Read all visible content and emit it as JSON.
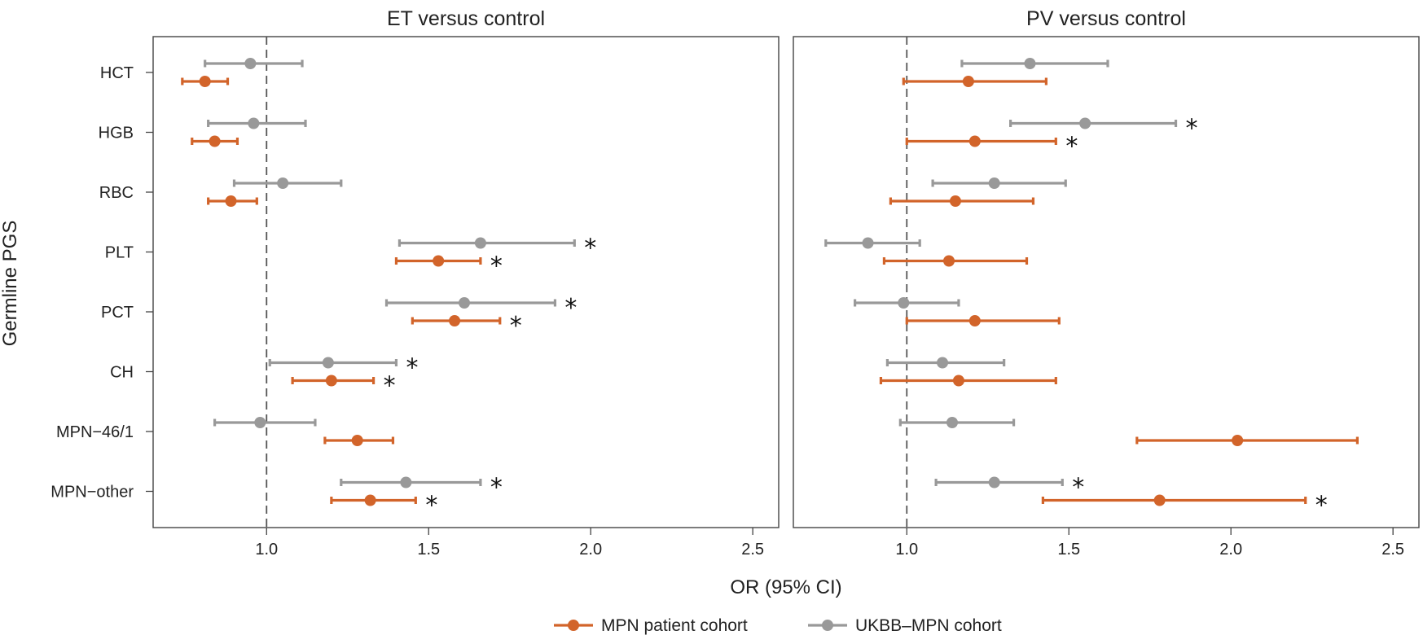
{
  "chart_data": [
    {
      "type": "forest",
      "title": "ET versus control",
      "xlabel": "OR (95% CI)",
      "ylabel": "Germline PGS",
      "xlim": [
        0.65,
        2.58
      ],
      "xticks": [
        "1.0",
        "1.5",
        "2.0",
        "2.5"
      ],
      "reference_line": 1.0,
      "categories": [
        "HCT",
        "HGB",
        "RBC",
        "PLT",
        "PCT",
        "CH",
        "MPN−46/1",
        "MPN−other"
      ],
      "series": [
        {
          "name": "UKBB–MPN cohort",
          "color": "#999999",
          "points": [
            {
              "or": 0.95,
              "lo": 0.81,
              "hi": 1.11,
              "sig": false
            },
            {
              "or": 0.96,
              "lo": 0.82,
              "hi": 1.12,
              "sig": false
            },
            {
              "or": 1.05,
              "lo": 0.9,
              "hi": 1.23,
              "sig": false
            },
            {
              "or": 1.66,
              "lo": 1.41,
              "hi": 1.95,
              "sig": true
            },
            {
              "or": 1.61,
              "lo": 1.37,
              "hi": 1.89,
              "sig": true
            },
            {
              "or": 1.19,
              "lo": 1.01,
              "hi": 1.4,
              "sig": true
            },
            {
              "or": 0.98,
              "lo": 0.84,
              "hi": 1.15,
              "sig": false
            },
            {
              "or": 1.43,
              "lo": 1.23,
              "hi": 1.66,
              "sig": true
            }
          ]
        },
        {
          "name": "MPN patient cohort",
          "color": "#D2642A",
          "points": [
            {
              "or": 0.81,
              "lo": 0.74,
              "hi": 0.88,
              "sig": false
            },
            {
              "or": 0.84,
              "lo": 0.77,
              "hi": 0.91,
              "sig": false
            },
            {
              "or": 0.89,
              "lo": 0.82,
              "hi": 0.97,
              "sig": false
            },
            {
              "or": 1.53,
              "lo": 1.4,
              "hi": 1.66,
              "sig": true
            },
            {
              "or": 1.58,
              "lo": 1.45,
              "hi": 1.72,
              "sig": true
            },
            {
              "or": 1.2,
              "lo": 1.08,
              "hi": 1.33,
              "sig": true
            },
            {
              "or": 1.28,
              "lo": 1.18,
              "hi": 1.39,
              "sig": false
            },
            {
              "or": 1.32,
              "lo": 1.2,
              "hi": 1.46,
              "sig": true
            }
          ]
        }
      ]
    },
    {
      "type": "forest",
      "title": "PV versus control",
      "xlabel": "OR (95% CI)",
      "ylabel": "Germline PGS",
      "xlim": [
        0.65,
        2.58
      ],
      "xticks": [
        "1.0",
        "1.5",
        "2.0",
        "2.5"
      ],
      "reference_line": 1.0,
      "categories": [
        "HCT",
        "HGB",
        "RBC",
        "PLT",
        "PCT",
        "CH",
        "MPN−46/1",
        "MPN−other"
      ],
      "series": [
        {
          "name": "UKBB–MPN cohort",
          "color": "#999999",
          "points": [
            {
              "or": 1.38,
              "lo": 1.17,
              "hi": 1.62,
              "sig": false
            },
            {
              "or": 1.55,
              "lo": 1.32,
              "hi": 1.83,
              "sig": true
            },
            {
              "or": 1.27,
              "lo": 1.08,
              "hi": 1.49,
              "sig": false
            },
            {
              "or": 0.88,
              "lo": 0.75,
              "hi": 1.04,
              "sig": false
            },
            {
              "or": 0.99,
              "lo": 0.84,
              "hi": 1.16,
              "sig": false
            },
            {
              "or": 1.11,
              "lo": 0.94,
              "hi": 1.3,
              "sig": false
            },
            {
              "or": 1.14,
              "lo": 0.98,
              "hi": 1.33,
              "sig": false
            },
            {
              "or": 1.27,
              "lo": 1.09,
              "hi": 1.48,
              "sig": true
            }
          ]
        },
        {
          "name": "MPN patient cohort",
          "color": "#D2642A",
          "points": [
            {
              "or": 1.19,
              "lo": 0.99,
              "hi": 1.43,
              "sig": false
            },
            {
              "or": 1.21,
              "lo": 1.0,
              "hi": 1.46,
              "sig": true
            },
            {
              "or": 1.15,
              "lo": 0.95,
              "hi": 1.39,
              "sig": false
            },
            {
              "or": 1.13,
              "lo": 0.93,
              "hi": 1.37,
              "sig": false
            },
            {
              "or": 1.21,
              "lo": 1.0,
              "hi": 1.47,
              "sig": false
            },
            {
              "or": 1.16,
              "lo": 0.92,
              "hi": 1.46,
              "sig": false
            },
            {
              "or": 2.02,
              "lo": 1.71,
              "hi": 2.39,
              "sig": false
            },
            {
              "or": 1.78,
              "lo": 1.42,
              "hi": 2.23,
              "sig": true
            }
          ]
        }
      ]
    }
  ],
  "significance_marker": "*",
  "legend": {
    "position": "bottom-center",
    "items": [
      {
        "label": "MPN patient cohort",
        "color": "#D2642A"
      },
      {
        "label": "UKBB–MPN cohort",
        "color": "#999999"
      }
    ]
  }
}
